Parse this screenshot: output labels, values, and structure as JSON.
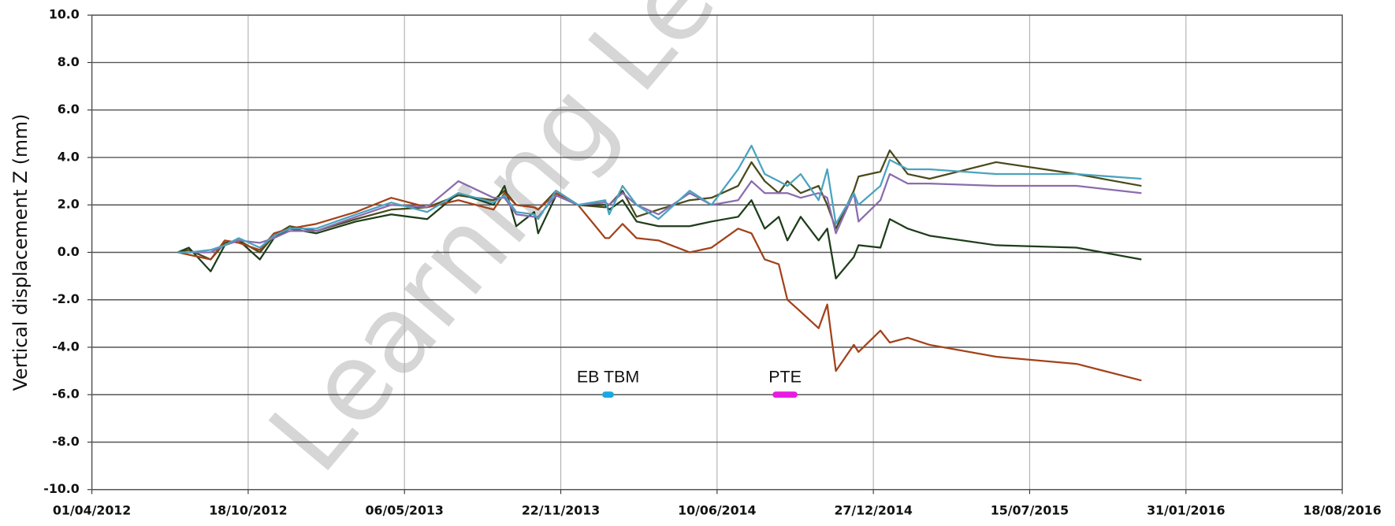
{
  "chart_data": {
    "type": "line",
    "y_label": "Vertical displacement Z (mm)",
    "watermark": "Learning Le",
    "x": [
      "20/07/2012",
      "03/08/2012",
      "31/08/2012",
      "18/09/2012",
      "06/10/2012",
      "02/11/2012",
      "20/11/2012",
      "10/12/2012",
      "13/01/2013",
      "05/03/2013",
      "19/04/2013",
      "04/06/2013",
      "14/07/2013",
      "28/08/2013",
      "11/09/2013",
      "26/09/2013",
      "19/10/2013",
      "24/10/2013",
      "16/11/2013",
      "14/12/2013",
      "18/01/2014",
      "23/01/2014",
      "09/02/2014",
      "27/02/2014",
      "27/03/2014",
      "06/05/2014",
      "03/06/2014",
      "07/07/2014",
      "24/07/2014",
      "10/08/2014",
      "28/08/2014",
      "08/09/2014",
      "25/09/2014",
      "18/10/2014",
      "29/10/2014",
      "09/11/2014",
      "02/12/2014",
      "08/12/2014",
      "05/01/2015",
      "17/01/2015",
      "09/02/2015",
      "09/03/2015",
      "02/06/2015",
      "13/09/2015",
      "05/12/2015"
    ],
    "series": [
      {
        "color": "#4a4a1c",
        "values": [
          0,
          0.1,
          -0.3,
          0.4,
          0.5,
          0.0,
          0.7,
          1.1,
          0.9,
          1.4,
          1.8,
          1.9,
          2.4,
          2.2,
          2.6,
          2.0,
          1.9,
          1.8,
          2.6,
          2.0,
          1.9,
          2.0,
          2.6,
          1.5,
          1.8,
          2.2,
          2.3,
          2.8,
          3.8,
          3.0,
          2.5,
          3.0,
          2.5,
          2.8,
          2.0,
          1.0,
          2.6,
          3.2,
          3.4,
          4.3,
          3.3,
          3.1,
          3.8,
          3.3,
          2.8
        ]
      },
      {
        "color": "#1e3d1a",
        "values": [
          0,
          0.2,
          -0.8,
          0.3,
          0.5,
          -0.3,
          0.6,
          1.0,
          0.8,
          1.3,
          1.6,
          1.4,
          2.5,
          2.0,
          2.8,
          1.1,
          1.7,
          0.8,
          2.4,
          2.0,
          2.0,
          1.8,
          2.2,
          1.3,
          1.1,
          1.1,
          1.3,
          1.5,
          2.2,
          1.0,
          1.5,
          0.5,
          1.5,
          0.5,
          1.0,
          -1.1,
          -0.2,
          0.3,
          0.2,
          1.4,
          1.0,
          0.7,
          0.3,
          0.2,
          -0.3
        ]
      },
      {
        "color": "#a3421a",
        "values": [
          0,
          -0.1,
          -0.3,
          0.5,
          0.4,
          0.1,
          0.8,
          1.0,
          1.2,
          1.7,
          2.3,
          1.9,
          2.2,
          1.8,
          2.5,
          2.0,
          1.9,
          1.8,
          2.5,
          2.0,
          0.6,
          0.6,
          1.2,
          0.6,
          0.5,
          0,
          0.2,
          1.0,
          0.8,
          -0.3,
          -0.5,
          -2.0,
          -2.5,
          -3.2,
          -2.2,
          -5.0,
          -3.9,
          -4.2,
          -3.3,
          -3.8,
          -3.6,
          -3.9,
          -4.4,
          -4.7,
          -5.4
        ]
      },
      {
        "color": "#8a6cae",
        "values": [
          0,
          0,
          0,
          0.3,
          0.5,
          0.4,
          0.6,
          0.9,
          0.9,
          1.5,
          2.0,
          1.9,
          3.0,
          2.3,
          2.3,
          1.6,
          1.5,
          1.5,
          2.4,
          2.0,
          2.1,
          2.0,
          2.5,
          2.0,
          1.6,
          2.5,
          2.0,
          2.2,
          3.0,
          2.5,
          2.5,
          2.5,
          2.3,
          2.5,
          2.3,
          0.8,
          2.5,
          1.3,
          2.2,
          3.3,
          2.9,
          2.9,
          2.8,
          2.8,
          2.5
        ]
      },
      {
        "color": "#4aa3c0",
        "values": [
          0,
          0,
          0.1,
          0.3,
          0.6,
          0.2,
          0.7,
          1.0,
          1.0,
          1.6,
          2.1,
          1.7,
          2.5,
          2.1,
          2.4,
          1.7,
          1.6,
          1.4,
          2.6,
          2.0,
          2.2,
          1.6,
          2.8,
          2.0,
          1.4,
          2.6,
          2.0,
          3.5,
          4.5,
          3.3,
          3.0,
          2.8,
          3.3,
          2.2,
          3.5,
          1.2,
          2.5,
          2.0,
          2.8,
          3.9,
          3.5,
          3.5,
          3.3,
          3.3,
          3.1
        ]
      }
    ],
    "annotations": [
      {
        "text": "EB TBM",
        "x": [
          "18/01/2014",
          "25/01/2014"
        ],
        "y": -6,
        "color": "#1aa8e0"
      },
      {
        "text": "PTE",
        "x": [
          "24/08/2014",
          "17/09/2014"
        ],
        "y": -6,
        "color": "#e81ce0"
      }
    ],
    "xlim": [
      "01/04/2012",
      "18/08/2016"
    ],
    "xticks": [
      "01/04/2012",
      "18/10/2012",
      "06/05/2013",
      "22/11/2013",
      "10/06/2014",
      "27/12/2014",
      "15/07/2015",
      "31/01/2016",
      "18/08/2016"
    ],
    "ylim": [
      -10,
      10
    ],
    "yticks": [
      {
        "value": -10,
        "label": "-10.0"
      },
      {
        "value": -8,
        "label": "-8.0"
      },
      {
        "value": -6,
        "label": "-6.0"
      },
      {
        "value": -4,
        "label": "-4.0"
      },
      {
        "value": -2,
        "label": "-2.0"
      },
      {
        "value": 0,
        "label": "0.0"
      },
      {
        "value": 2,
        "label": "2.0"
      },
      {
        "value": 4,
        "label": "4.0"
      },
      {
        "value": 6,
        "label": "6.0"
      },
      {
        "value": 8,
        "label": "8.0"
      },
      {
        "value": 10,
        "label": "10.0"
      }
    ],
    "grid": true
  }
}
